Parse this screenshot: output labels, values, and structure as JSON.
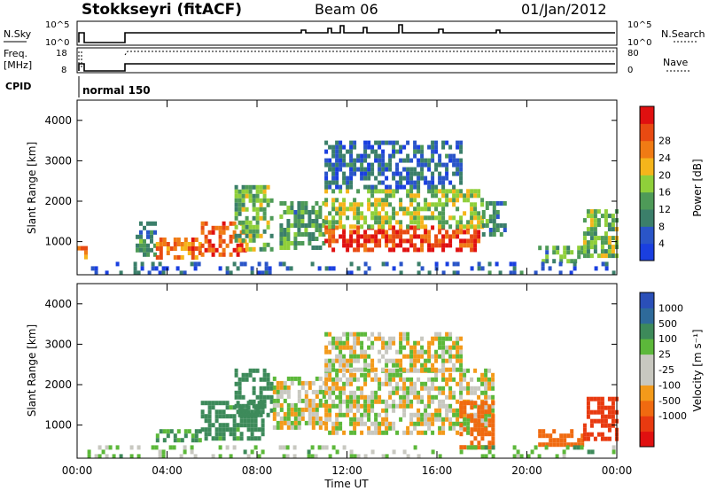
{
  "header": {
    "station": "Stokkseyri (fitACF)",
    "beam": "Beam 06",
    "date": "01/Jan/2012"
  },
  "strip_labels": {
    "nsky": "N.Sky",
    "nsky_top": "10^5",
    "nsky_bottom": "10^0",
    "nsearch": "N.Search",
    "nsearch_top": "10^5",
    "nsearch_bottom": "10^0",
    "freq_line1": "Freq.",
    "freq_line2": "[MHz]",
    "freq_top": "18",
    "freq_bottom": "8",
    "nave": "Nave",
    "nave_top": "80",
    "nave_bottom": "0",
    "cpid": "CPID",
    "cpid_value": "normal 150"
  },
  "colors": {
    "power_scale": [
      "#1a3fe0",
      "#2a55c8",
      "#3b7f6a",
      "#4e9a58",
      "#8fcf3a",
      "#f5b51b",
      "#f07b14",
      "#e84a12",
      "#e01010"
    ],
    "velocity_scale": [
      "#2a4fb8",
      "#2e6a9a",
      "#3d8a5a",
      "#5cb83a",
      "#c8c8c0",
      "#c8c8c0",
      "#f39a1a",
      "#f06a10",
      "#e83a10",
      "#e01010"
    ]
  },
  "chart_data": [
    {
      "type": "heatmap",
      "panel": "power",
      "ylabel": "Slant Range [km]",
      "yticks": [
        "1000",
        "2000",
        "3000",
        "4000"
      ],
      "ylim": [
        180,
        4500
      ],
      "xlim": [
        0,
        24
      ],
      "colorbar_label": "Power [dB]",
      "colorbar_ticks": [
        "4",
        "8",
        "12",
        "16",
        "20",
        "24",
        "28"
      ],
      "colorbar_range": [
        0,
        32
      ],
      "regions": [
        {
          "t0": 0.0,
          "t1": 0.35,
          "r0": 600,
          "r1": 1000,
          "v": 22
        },
        {
          "t0": 2.6,
          "t1": 3.5,
          "r0": 650,
          "r1": 1500,
          "v": 10
        },
        {
          "t0": 3.5,
          "t1": 5.5,
          "r0": 600,
          "r1": 1100,
          "v": 24
        },
        {
          "t0": 5.5,
          "t1": 7.5,
          "r0": 700,
          "r1": 1500,
          "v": 26
        },
        {
          "t0": 7.0,
          "t1": 8.7,
          "r0": 800,
          "r1": 2400,
          "v": 14
        },
        {
          "t0": 9.0,
          "t1": 11.0,
          "r0": 900,
          "r1": 2000,
          "v": 12
        },
        {
          "t0": 11.0,
          "t1": 17.8,
          "r0": 800,
          "r1": 1400,
          "v": 28
        },
        {
          "t0": 11.0,
          "t1": 18.0,
          "r0": 1400,
          "r1": 2300,
          "v": 16
        },
        {
          "t0": 11.0,
          "t1": 17.0,
          "r0": 2300,
          "r1": 3500,
          "v": 6
        },
        {
          "t0": 18.0,
          "t1": 19.0,
          "r0": 1200,
          "r1": 2000,
          "v": 10
        },
        {
          "t0": 20.5,
          "t1": 22.5,
          "r0": 500,
          "r1": 900,
          "v": 12
        },
        {
          "t0": 22.5,
          "t1": 24.0,
          "r0": 600,
          "r1": 1800,
          "v": 14
        },
        {
          "t0": 0.3,
          "t1": 24.0,
          "r0": 200,
          "r1": 500,
          "v": 6
        }
      ]
    },
    {
      "type": "heatmap",
      "panel": "velocity",
      "ylabel": "Slant Range [km]",
      "yticks": [
        "1000",
        "2000",
        "3000",
        "4000"
      ],
      "ylim": [
        180,
        4500
      ],
      "xlim": [
        0,
        24
      ],
      "xlabel": "Time UT",
      "xticks": [
        "00:00",
        "04:00",
        "08:00",
        "12:00",
        "16:00",
        "20:00",
        "00:00"
      ],
      "colorbar_label": "Velocity [m s⁻¹]",
      "colorbar_ticks": [
        "1000",
        "500",
        "100",
        "25",
        "-25",
        "-100",
        "-500",
        "-1000"
      ],
      "regions": [
        {
          "t0": 3.5,
          "t1": 5.5,
          "r0": 600,
          "r1": 900,
          "v": 120
        },
        {
          "t0": 5.5,
          "t1": 8.2,
          "r0": 700,
          "r1": 1600,
          "v": 150
        },
        {
          "t0": 7.0,
          "t1": 8.7,
          "r0": 1200,
          "r1": 2400,
          "v": 300
        },
        {
          "t0": 8.7,
          "t1": 11.0,
          "r0": 900,
          "r1": 2200,
          "v": 0
        },
        {
          "t0": 11.0,
          "t1": 18.5,
          "r0": 800,
          "r1": 2400,
          "v": 0
        },
        {
          "t0": 11.0,
          "t1": 17.0,
          "r0": 2400,
          "r1": 3300,
          "v": 0
        },
        {
          "t0": 17.0,
          "t1": 18.5,
          "r0": 500,
          "r1": 1600,
          "v": -300
        },
        {
          "t0": 20.5,
          "t1": 22.5,
          "r0": 500,
          "r1": 900,
          "v": -400
        },
        {
          "t0": 22.5,
          "t1": 24.0,
          "r0": 700,
          "r1": 1700,
          "v": -800
        },
        {
          "t0": 0.3,
          "t1": 24.0,
          "r0": 200,
          "r1": 500,
          "v": 50
        }
      ]
    }
  ]
}
